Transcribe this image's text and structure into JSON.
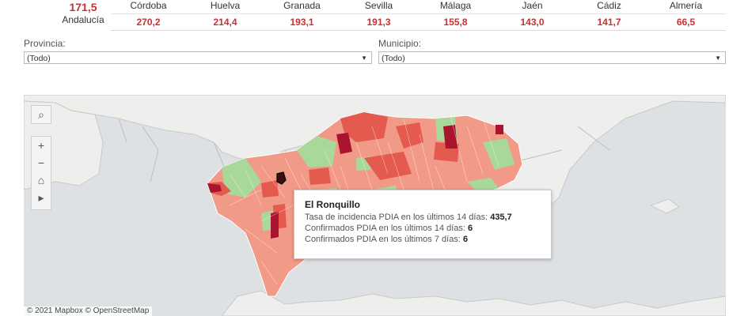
{
  "overall": {
    "value": "171,5",
    "label": "Andalucía"
  },
  "provinces": [
    {
      "name": "Córdoba",
      "value": "270,2"
    },
    {
      "name": "Huelva",
      "value": "214,4"
    },
    {
      "name": "Granada",
      "value": "193,1"
    },
    {
      "name": "Sevilla",
      "value": "191,3"
    },
    {
      "name": "Málaga",
      "value": "155,8"
    },
    {
      "name": "Jaén",
      "value": "143,0"
    },
    {
      "name": "Cádiz",
      "value": "141,7"
    },
    {
      "name": "Almería",
      "value": "66,5"
    }
  ],
  "filters": {
    "provincia": {
      "label": "Provincia:",
      "value": "(Todo)"
    },
    "municipio": {
      "label": "Municipio:",
      "value": "(Todo)"
    }
  },
  "map_controls": {
    "search": "⌕",
    "zoom_in": "+",
    "zoom_out": "−",
    "home": "⌂",
    "play": "▸"
  },
  "tooltip": {
    "title": "El Ronquillo",
    "row1_label": "Tasa de incidencia PDIA en los últimos 14 días:",
    "row1_value": "435,7",
    "row2_label": "Confirmados PDIA en los últimos 14 días:",
    "row2_value": "6",
    "row3_label": "Confirmados PDIA en los últimos 7 días:",
    "row3_value": "6"
  },
  "attribution": "© 2021 Mapbox  © OpenStreetMap",
  "colors": {
    "accent": "#c8312f",
    "sea": "#dde1e4",
    "land": "#eeeeec",
    "low": "#a9d89b",
    "mid": "#f39a88",
    "high": "#e55a4f",
    "very_high": "#a9152f"
  }
}
